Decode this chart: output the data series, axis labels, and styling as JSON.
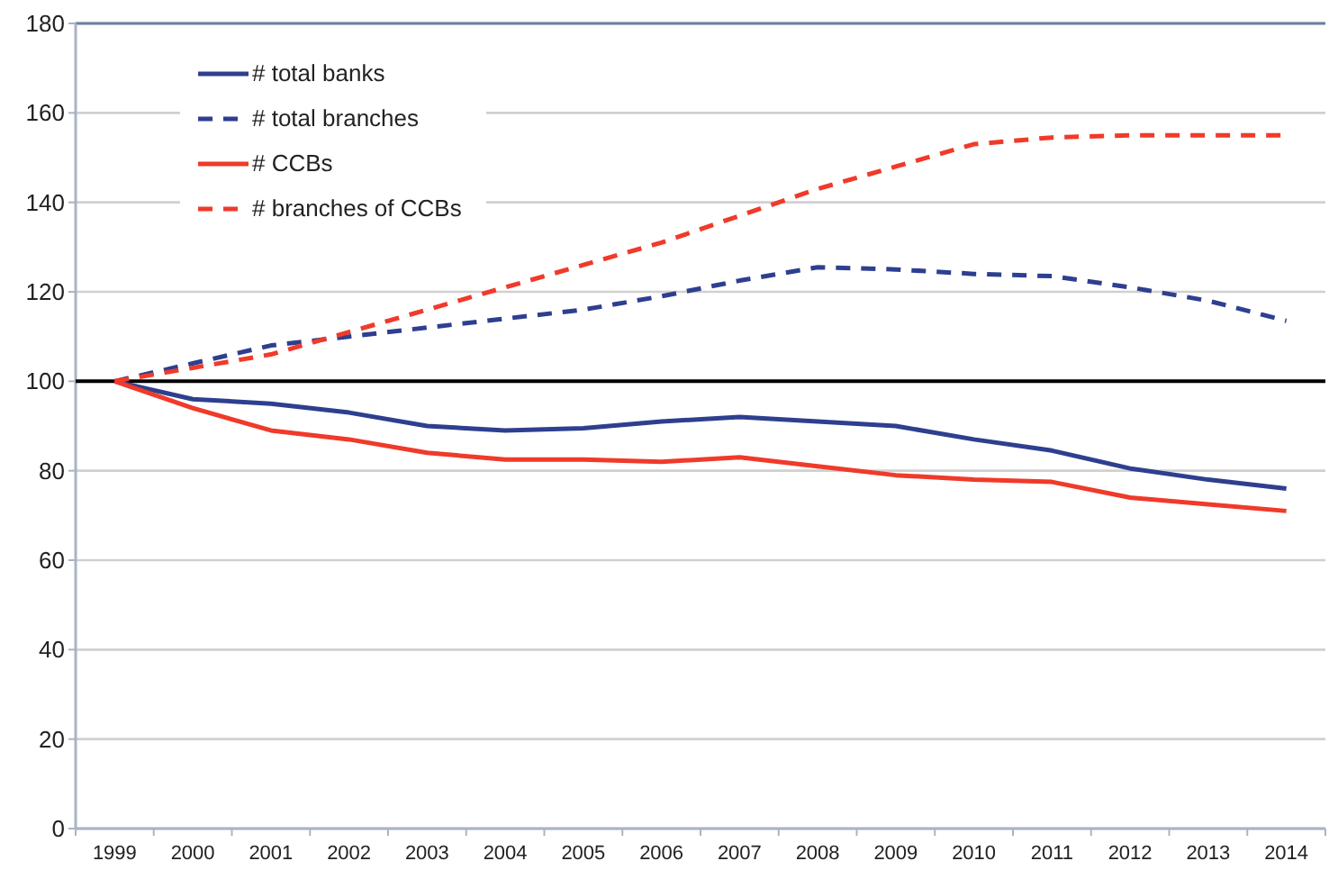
{
  "chart_data": {
    "type": "line",
    "categories": [
      "1999",
      "2000",
      "2001",
      "2002",
      "2003",
      "2004",
      "2005",
      "2006",
      "2007",
      "2008",
      "2009",
      "2010",
      "2011",
      "2012",
      "2013",
      "2014"
    ],
    "series": [
      {
        "name": "# total banks",
        "color": "#2e3f8f",
        "line_style": "solid",
        "values": [
          100,
          96,
          95,
          93,
          90,
          89,
          89.5,
          91,
          92,
          91,
          90,
          87,
          84.5,
          80.5,
          78,
          76
        ]
      },
      {
        "name": "# total branches",
        "color": "#2e3f8f",
        "line_style": "dashed",
        "values": [
          100,
          104,
          108,
          110,
          112,
          114,
          116,
          119,
          122.5,
          125.5,
          125,
          124,
          123.5,
          121,
          118,
          113.5
        ]
      },
      {
        "name": "# CCBs",
        "color": "#f03a2a",
        "line_style": "solid",
        "values": [
          100,
          94,
          89,
          87,
          84,
          82.5,
          82.5,
          82,
          83,
          81,
          79,
          78,
          77.5,
          74,
          72.5,
          71
        ]
      },
      {
        "name": "# branches of CCBs",
        "color": "#f03a2a",
        "line_style": "dashed",
        "values": [
          100,
          103,
          106,
          111,
          116,
          121,
          126,
          131,
          137,
          143,
          148,
          153,
          154.5,
          155,
          155,
          155
        ]
      }
    ],
    "ylim": [
      0,
      180
    ],
    "yticks": [
      0,
      20,
      40,
      60,
      80,
      100,
      120,
      140,
      160,
      180
    ],
    "grid": "y",
    "legend": "top left",
    "ref_lines": [
      {
        "axis": "y",
        "value": 100,
        "color": "#000000"
      }
    ]
  }
}
